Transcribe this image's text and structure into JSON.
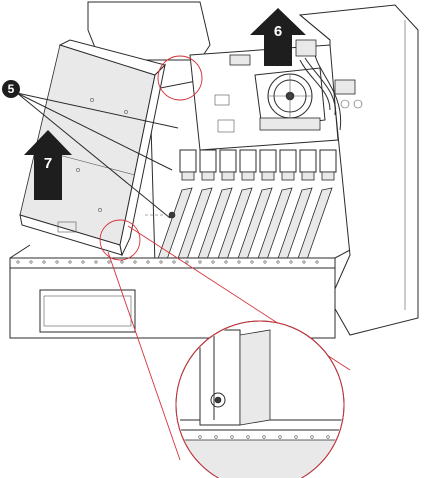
{
  "callouts": {
    "screws": "5",
    "top_arrow": "6",
    "side_arrow": "7"
  },
  "colors": {
    "line": "#2b2b2b",
    "highlight": "#d5333a",
    "arrow": "#1e1e1e"
  },
  "icons": {
    "callout_marker": "filled-circle-number",
    "direction": "up-arrow"
  }
}
